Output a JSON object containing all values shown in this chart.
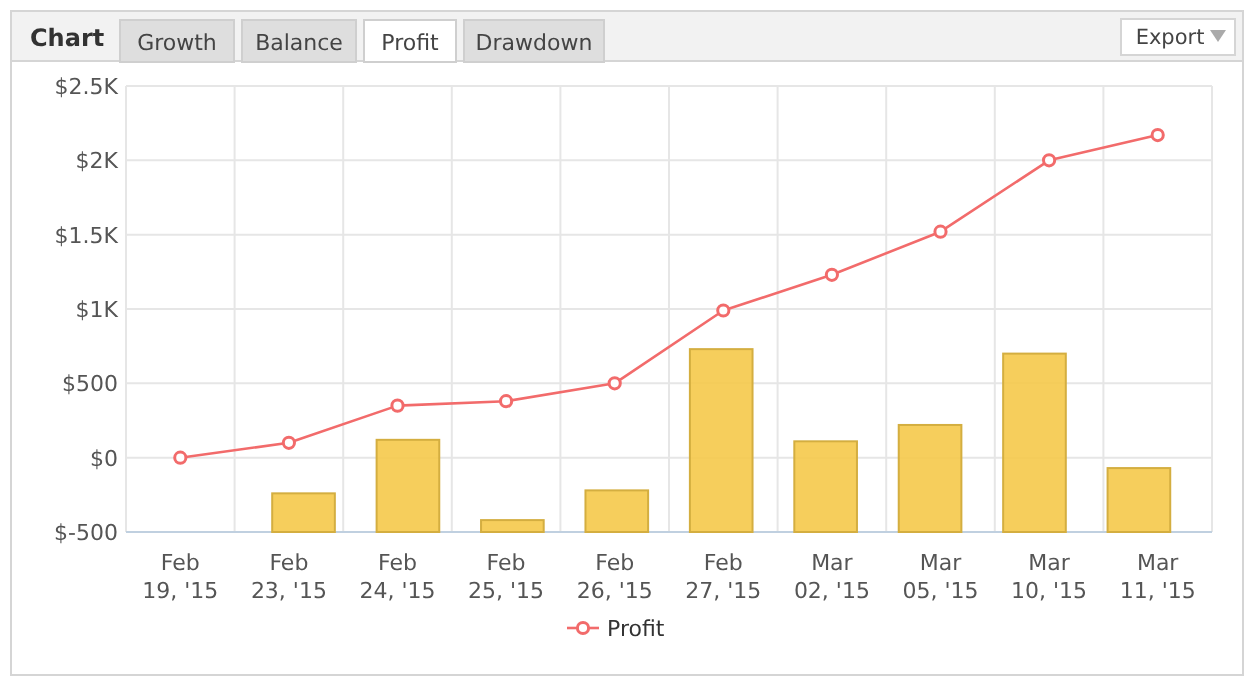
{
  "chart_data": {
    "type": "bar",
    "title": "Chart",
    "annotations": [
      "Growth",
      "Balance",
      "Profit",
      "Drawdown",
      "Export"
    ],
    "categories": [
      "Feb 19, '15",
      "Feb 23, '15",
      "Feb 24, '15",
      "Feb 25, '15",
      "Feb 26, '15",
      "Feb 27, '15",
      "Mar 02, '15",
      "Mar 05, '15",
      "Mar 10, '15",
      "Mar 11, '15"
    ],
    "series": [
      {
        "color": "#f5c94a",
        "base": [
          null,
          -500,
          -500,
          -500,
          -500,
          -500,
          -500,
          -500,
          -500,
          -500
        ],
        "values": [
          null,
          260,
          620,
          80,
          280,
          1230,
          610,
          720,
          1200,
          430
        ]
      },
      {
        "type": "line",
        "name": "Profit",
        "color": "#f26b6b",
        "marker": "circle",
        "values": [
          0,
          100,
          350,
          380,
          500,
          990,
          1230,
          1520,
          2000,
          2170
        ]
      }
    ],
    "ylim": [
      -500,
      2500
    ],
    "yticks": [
      {
        "value": -500,
        "label": "$-500"
      },
      {
        "value": 0,
        "label": "$0"
      },
      {
        "value": 500,
        "label": "$500"
      },
      {
        "value": 1000,
        "label": "$1K"
      },
      {
        "value": 1500,
        "label": "$1.5K"
      },
      {
        "value": 2000,
        "label": "$2K"
      },
      {
        "value": 2500,
        "label": "$2.5K"
      }
    ],
    "grid": true,
    "legend": "bottom"
  }
}
